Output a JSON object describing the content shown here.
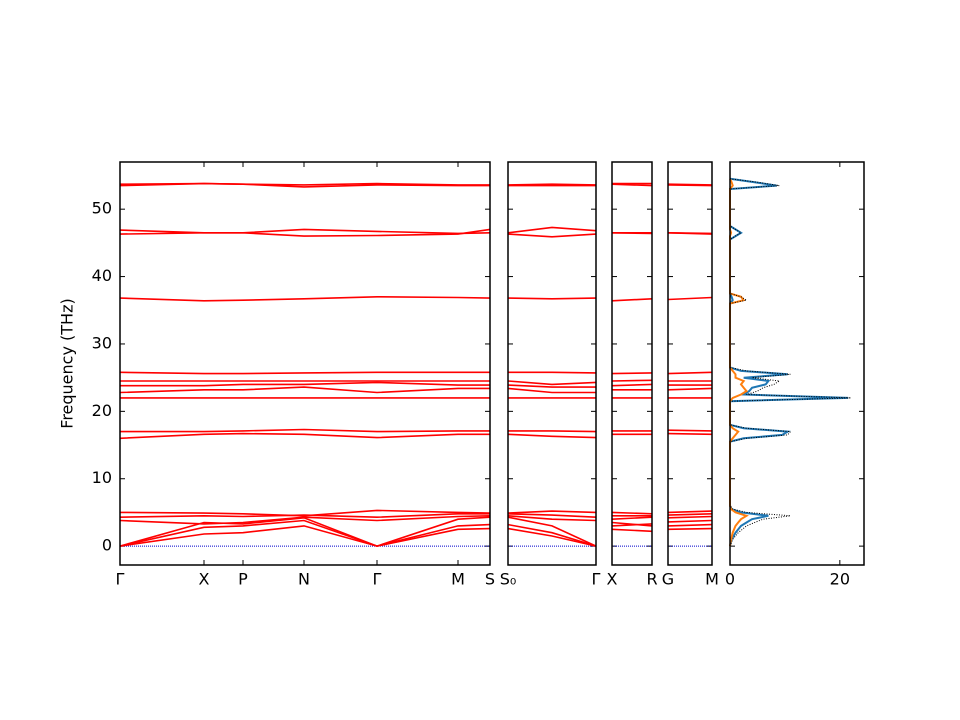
{
  "chart_data": [
    {
      "type": "bands",
      "ylabel": "Frequency (THz)",
      "ylim": [
        -2.8,
        57
      ],
      "yticks": [
        0,
        10,
        20,
        30,
        40,
        50
      ],
      "color": "#ff0000",
      "hline": {
        "value": 0,
        "color": "#0000cc"
      },
      "x": [
        0,
        0.84,
        1.23,
        1.84,
        2.57,
        3.38,
        3.7
      ],
      "xlim": [
        0,
        3.7
      ],
      "xticks": [
        {
          "value": 0,
          "label": "Γ"
        },
        {
          "value": 0.84,
          "label": "X"
        },
        {
          "value": 1.23,
          "label": "P"
        },
        {
          "value": 1.84,
          "label": "N"
        },
        {
          "value": 2.57,
          "label": "Γ"
        },
        {
          "value": 3.38,
          "label": "M"
        },
        {
          "value": 3.7,
          "label": "S"
        }
      ],
      "series": [
        {
          "values": [
            0,
            1.8,
            2.0,
            3.0,
            0,
            2.5,
            2.6
          ]
        },
        {
          "values": [
            0,
            2.8,
            3.0,
            3.8,
            0,
            3.0,
            3.2
          ]
        },
        {
          "values": [
            0,
            3.5,
            3.3,
            4.2,
            0,
            4.0,
            4.3
          ]
        },
        {
          "values": [
            3.8,
            3.3,
            3.5,
            4.3,
            3.8,
            4.4,
            4.5
          ]
        },
        {
          "values": [
            4.3,
            4.5,
            4.4,
            4.6,
            4.3,
            4.8,
            4.8
          ]
        },
        {
          "values": [
            5.0,
            4.9,
            4.8,
            4.5,
            5.3,
            5.0,
            4.9
          ]
        },
        {
          "values": [
            16.0,
            16.6,
            16.7,
            16.6,
            16.1,
            16.6,
            16.6
          ]
        },
        {
          "values": [
            17.0,
            17.0,
            17.1,
            17.3,
            17.0,
            17.1,
            17.1
          ]
        },
        {
          "values": [
            22.0,
            22.0,
            22.0,
            22.0,
            22.0,
            22.0,
            22.0
          ]
        },
        {
          "values": [
            22.8,
            23.2,
            23.2,
            23.6,
            22.8,
            23.4,
            23.4
          ]
        },
        {
          "values": [
            23.8,
            23.8,
            24.0,
            24.0,
            24.3,
            23.9,
            23.9
          ]
        },
        {
          "values": [
            24.5,
            24.5,
            24.5,
            24.5,
            24.5,
            24.5,
            24.5
          ]
        },
        {
          "values": [
            25.8,
            25.6,
            25.6,
            25.7,
            25.8,
            25.8,
            25.8
          ]
        },
        {
          "values": [
            36.8,
            36.4,
            36.5,
            36.7,
            37.0,
            36.9,
            36.8
          ]
        },
        {
          "values": [
            46.3,
            46.5,
            46.5,
            46.0,
            46.1,
            46.3,
            47.0
          ]
        },
        {
          "values": [
            46.9,
            46.5,
            46.5,
            47.0,
            46.7,
            46.4,
            46.5
          ]
        },
        {
          "values": [
            53.5,
            53.8,
            53.7,
            53.3,
            53.6,
            53.5,
            53.5
          ]
        },
        {
          "values": [
            53.7,
            53.8,
            53.7,
            53.6,
            53.8,
            53.6,
            53.6
          ]
        }
      ]
    },
    {
      "type": "bands",
      "ylim": [
        -2.8,
        57
      ],
      "color": "#ff0000",
      "hline": {
        "value": 0,
        "color": "#0000cc"
      },
      "x": [
        0,
        0.44,
        0.88
      ],
      "xlim": [
        0,
        0.88
      ],
      "xticks": [
        {
          "value": 0,
          "label": "S₀"
        },
        {
          "value": 0.88,
          "label": "Γ"
        }
      ],
      "series": [
        {
          "values": [
            2.6,
            1.5,
            0
          ]
        },
        {
          "values": [
            3.2,
            2.0,
            0
          ]
        },
        {
          "values": [
            4.3,
            3.0,
            0
          ]
        },
        {
          "values": [
            4.5,
            4.0,
            3.8
          ]
        },
        {
          "values": [
            4.8,
            4.6,
            4.3
          ]
        },
        {
          "values": [
            4.9,
            5.2,
            5.0
          ]
        },
        {
          "values": [
            16.6,
            16.3,
            16.1
          ]
        },
        {
          "values": [
            17.1,
            17.1,
            17.0
          ]
        },
        {
          "values": [
            22.0,
            22.0,
            22.0
          ]
        },
        {
          "values": [
            23.4,
            22.8,
            22.8
          ]
        },
        {
          "values": [
            23.9,
            23.6,
            23.6
          ]
        },
        {
          "values": [
            24.5,
            24.0,
            24.3
          ]
        },
        {
          "values": [
            25.8,
            25.8,
            25.7
          ]
        },
        {
          "values": [
            36.8,
            36.7,
            36.8
          ]
        },
        {
          "values": [
            46.3,
            45.9,
            46.3
          ]
        },
        {
          "values": [
            46.5,
            47.3,
            46.8
          ]
        },
        {
          "values": [
            53.5,
            53.5,
            53.5
          ]
        },
        {
          "values": [
            53.6,
            53.7,
            53.6
          ]
        }
      ]
    },
    {
      "type": "bands",
      "ylim": [
        -2.8,
        57
      ],
      "color": "#ff0000",
      "hline": {
        "value": 0,
        "color": "#0000cc"
      },
      "x": [
        0,
        0.4
      ],
      "xlim": [
        0,
        0.4
      ],
      "xticks": [
        {
          "value": 0,
          "label": "X"
        },
        {
          "value": 0.4,
          "label": "R"
        }
      ],
      "series": [
        {
          "values": [
            2.5,
            2.2
          ]
        },
        {
          "values": [
            3.0,
            3.3
          ]
        },
        {
          "values": [
            3.5,
            3.0
          ]
        },
        {
          "values": [
            4.0,
            4.3
          ]
        },
        {
          "values": [
            4.5,
            4.5
          ]
        },
        {
          "values": [
            5.0,
            4.8
          ]
        },
        {
          "values": [
            16.6,
            16.6
          ]
        },
        {
          "values": [
            17.1,
            17.1
          ]
        },
        {
          "values": [
            22,
            22
          ]
        },
        {
          "values": [
            23.2,
            23.2
          ]
        },
        {
          "values": [
            23.8,
            24.0
          ]
        },
        {
          "values": [
            24.5,
            24.6
          ]
        },
        {
          "values": [
            25.6,
            25.7
          ]
        },
        {
          "values": [
            36.4,
            36.7
          ]
        },
        {
          "values": [
            46.5,
            46.5
          ]
        },
        {
          "values": [
            46.5,
            46.4
          ]
        },
        {
          "values": [
            53.7,
            53.5
          ]
        },
        {
          "values": [
            53.8,
            53.8
          ]
        }
      ]
    },
    {
      "type": "bands",
      "ylim": [
        -2.8,
        57
      ],
      "color": "#ff0000",
      "hline": {
        "value": 0,
        "color": "#0000cc"
      },
      "x": [
        0,
        0.44
      ],
      "xlim": [
        0,
        0.44
      ],
      "xticks": [
        {
          "value": 0,
          "label": "G"
        },
        {
          "value": 0.44,
          "label": "M"
        }
      ],
      "series": [
        {
          "values": [
            2.5,
            2.6
          ]
        },
        {
          "values": [
            3.0,
            3.2
          ]
        },
        {
          "values": [
            3.6,
            3.8
          ]
        },
        {
          "values": [
            4.2,
            4.4
          ]
        },
        {
          "values": [
            4.6,
            4.8
          ]
        },
        {
          "values": [
            5.0,
            5.2
          ]
        },
        {
          "values": [
            16.7,
            16.6
          ]
        },
        {
          "values": [
            17.2,
            17.1
          ]
        },
        {
          "values": [
            22,
            22
          ]
        },
        {
          "values": [
            23.2,
            23.4
          ]
        },
        {
          "values": [
            23.9,
            23.9
          ]
        },
        {
          "values": [
            24.5,
            24.5
          ]
        },
        {
          "values": [
            25.6,
            25.8
          ]
        },
        {
          "values": [
            36.6,
            36.9
          ]
        },
        {
          "values": [
            46.5,
            46.3
          ]
        },
        {
          "values": [
            46.5,
            46.4
          ]
        },
        {
          "values": [
            53.6,
            53.5
          ]
        },
        {
          "values": [
            53.7,
            53.6
          ]
        }
      ]
    },
    {
      "type": "dos",
      "ylim": [
        -2.8,
        57
      ],
      "xlim": [
        0,
        24.4
      ],
      "xticks": [
        0,
        20
      ],
      "frequencies": [
        0,
        1,
        2,
        3,
        3.5,
        4,
        4.5,
        5,
        5.5,
        6,
        15.5,
        16,
        16.5,
        17,
        17.5,
        18,
        21.5,
        22,
        22.5,
        23,
        23.5,
        24,
        24.5,
        25,
        25.5,
        26,
        26.5,
        36,
        36.5,
        37,
        37.5,
        45.5,
        46,
        46.5,
        47,
        47.5,
        53,
        53.5,
        54,
        54.5
      ],
      "series": [
        {
          "color": "#1f77b4",
          "values": [
            0,
            0.3,
            1.0,
            2.0,
            3.0,
            4.0,
            7.0,
            2.0,
            0.3,
            0,
            0,
            2.5,
            9.5,
            10.5,
            2.5,
            0,
            0,
            21.5,
            2.5,
            3.5,
            4.0,
            6.5,
            7.0,
            2.5,
            10.5,
            2.0,
            0,
            0,
            0.5,
            0.3,
            0,
            0,
            1.0,
            2.0,
            1.0,
            0,
            0,
            8.5,
            4.5,
            0
          ]
        },
        {
          "color": "#ff7f0e",
          "values": [
            0,
            0.2,
            0.5,
            1.0,
            1.5,
            2.0,
            3.0,
            1.0,
            0.2,
            0,
            0,
            0.5,
            1.0,
            1.5,
            0.5,
            0,
            0,
            0.5,
            2.0,
            3.0,
            2.5,
            2.0,
            2.5,
            1.0,
            1.0,
            0.5,
            0,
            0,
            2.5,
            2.0,
            0,
            0,
            0,
            0.2,
            0,
            0,
            0,
            0.5,
            0.3,
            0
          ]
        },
        {
          "color": "#000000",
          "dashed": true,
          "values": [
            0,
            0.5,
            1.5,
            3,
            4.5,
            6,
            11,
            3,
            0.5,
            0,
            0,
            3,
            10.5,
            11,
            3,
            0,
            0,
            22,
            3,
            5,
            6,
            8,
            9,
            4,
            11,
            3,
            0,
            0,
            3,
            2,
            0,
            0,
            1,
            2,
            1,
            0,
            0,
            9,
            5,
            0
          ]
        }
      ]
    }
  ]
}
